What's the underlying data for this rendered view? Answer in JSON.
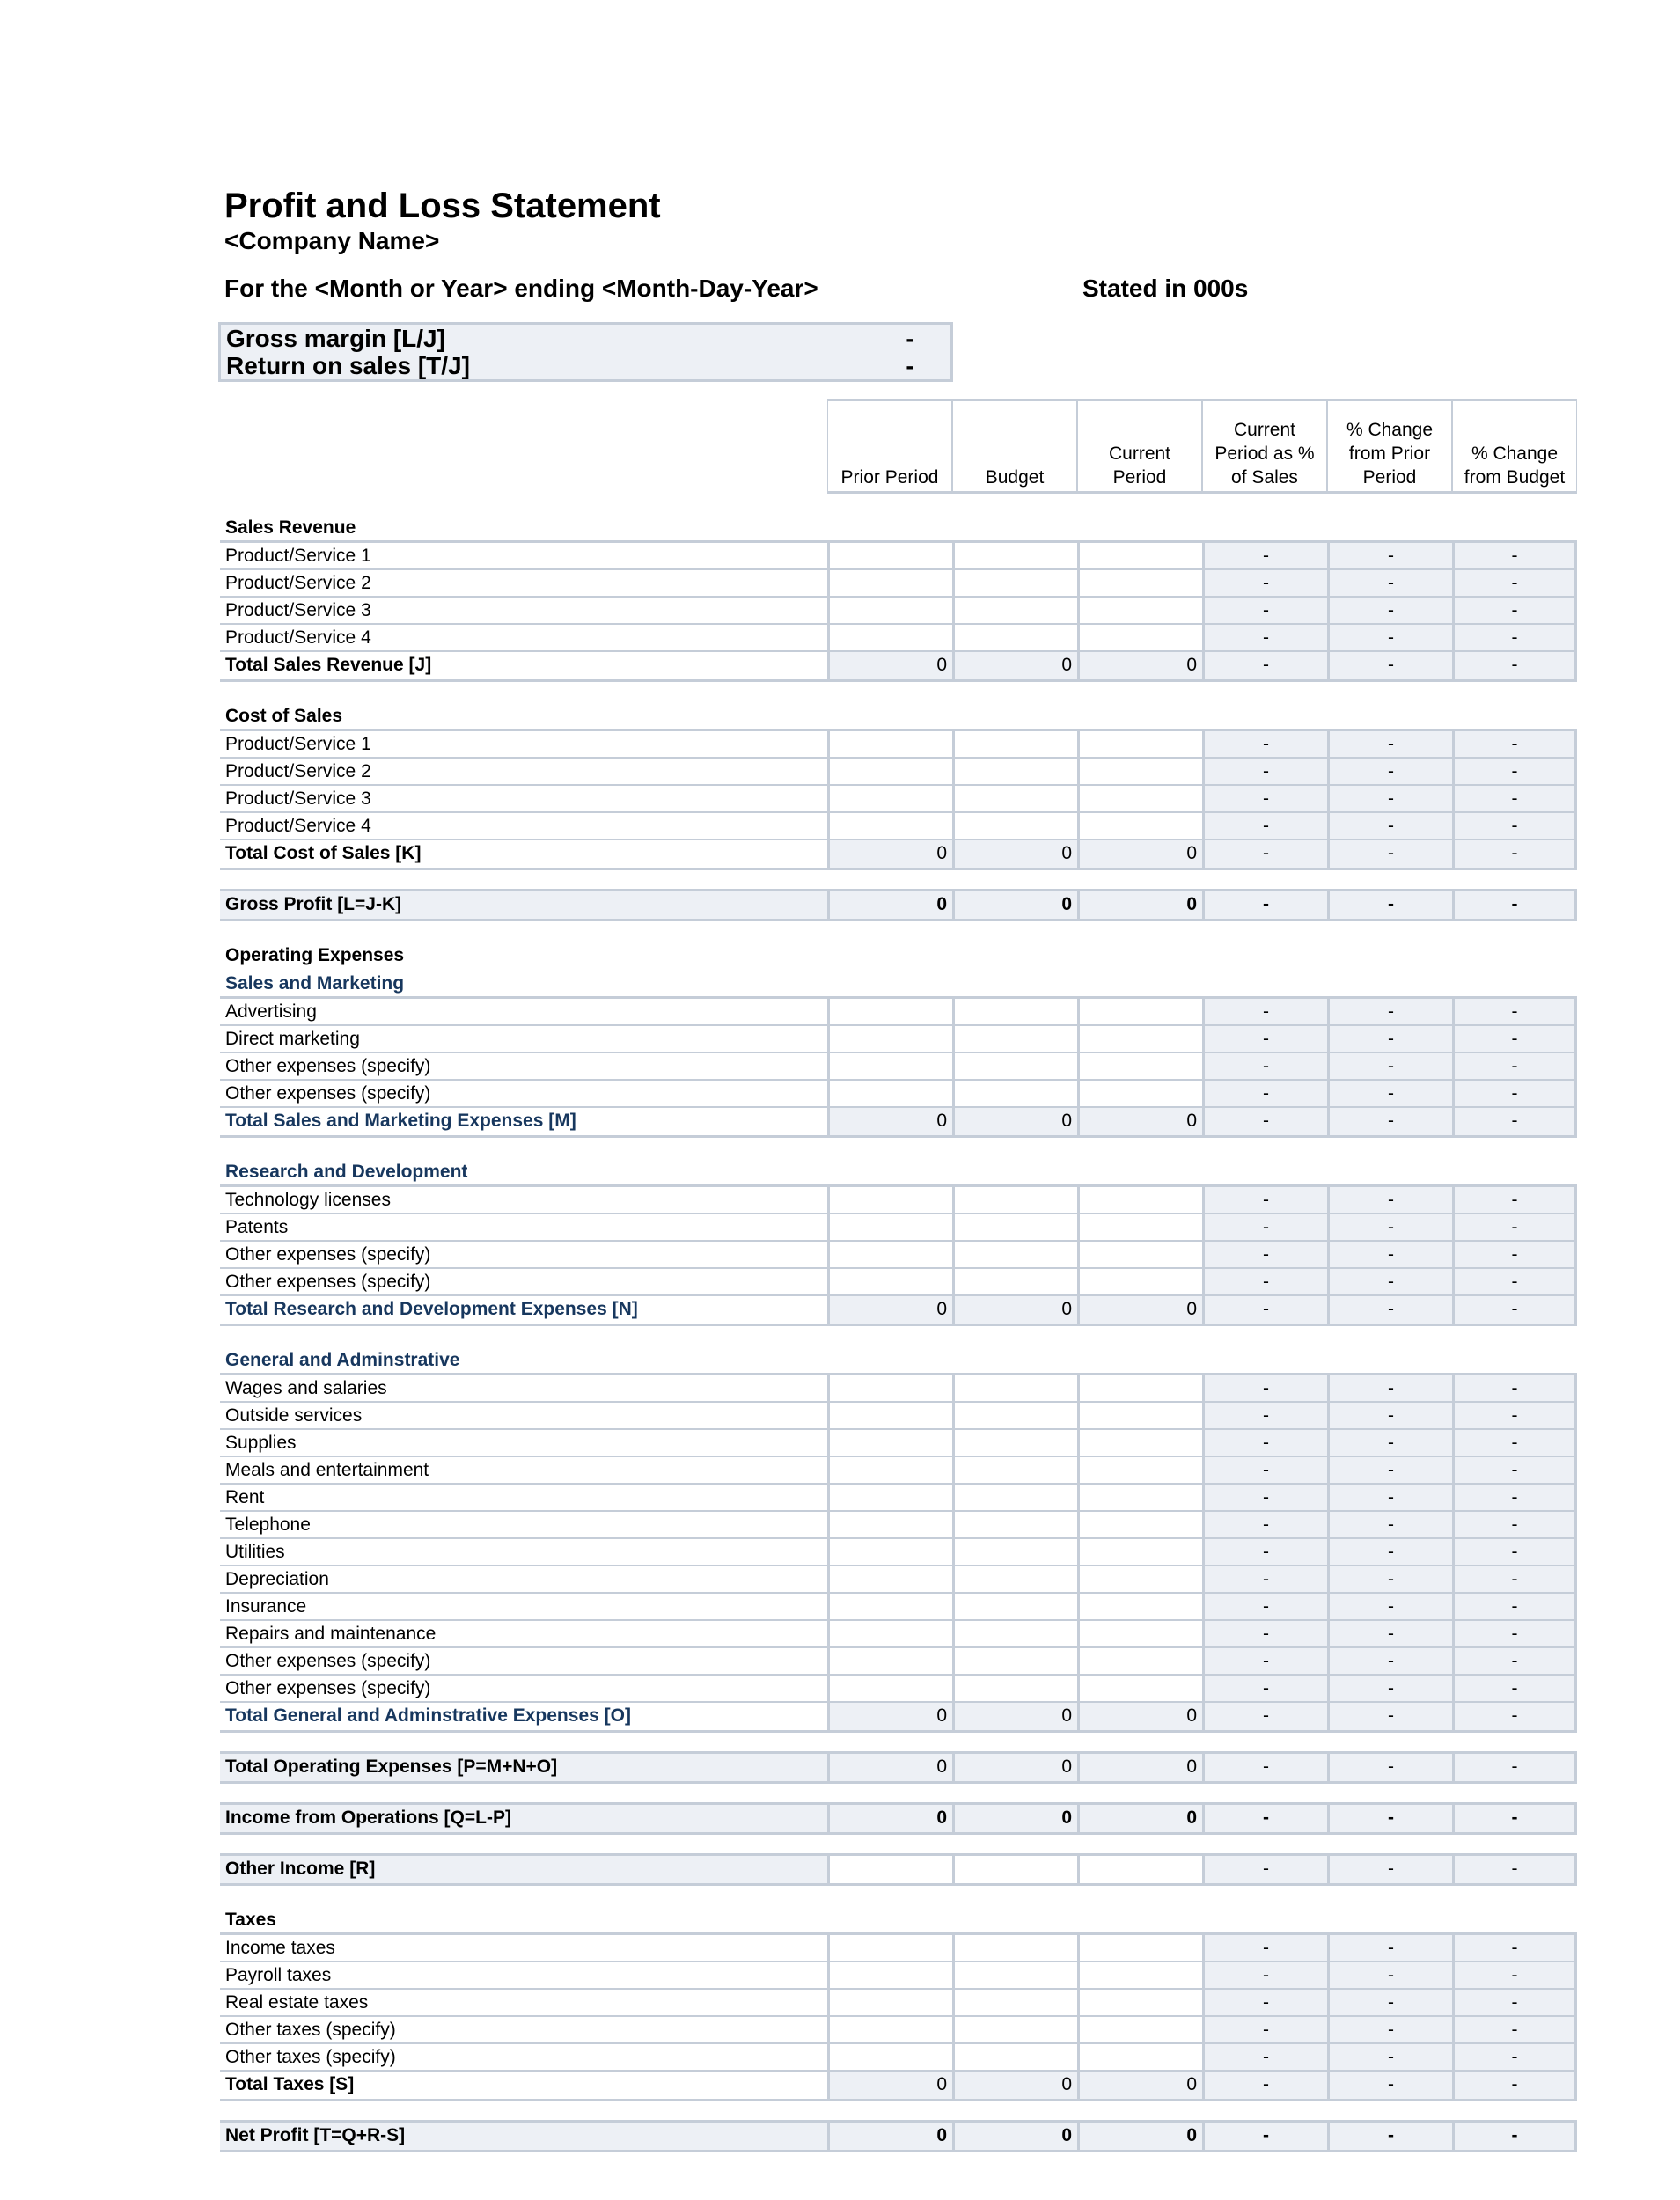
{
  "header": {
    "title": "Profit and Loss Statement",
    "company": "<Company Name>",
    "period": "For the <Month or Year> ending <Month-Day-Year>",
    "stated": "Stated in 000s"
  },
  "summary": [
    {
      "label": "Gross margin  [L/J]",
      "value": "-"
    },
    {
      "label": "Return on sales  [T/J]",
      "value": "-"
    }
  ],
  "columns": [
    "Prior Period",
    "Budget",
    "Current\nPeriod",
    "Current\nPeriod as %\nof Sales",
    "% Change\nfrom Prior\nPeriod",
    "% Change\nfrom Budget"
  ],
  "colors": {
    "heading_blue": "#17375e",
    "shade": "#edf0f5",
    "border": "#c5cdd8"
  },
  "blocks": [
    {
      "heading": "Sales Revenue",
      "rows": [
        {
          "label": "Product/Service 1",
          "type": "input"
        },
        {
          "label": "Product/Service 2",
          "type": "input"
        },
        {
          "label": "Product/Service 3",
          "type": "input"
        },
        {
          "label": "Product/Service 4",
          "type": "input"
        },
        {
          "label": "Total Sales Revenue  [J]",
          "type": "total",
          "values": [
            "0",
            "0",
            "0"
          ]
        }
      ]
    },
    {
      "heading": "Cost of Sales",
      "rows": [
        {
          "label": "Product/Service 1",
          "type": "input"
        },
        {
          "label": "Product/Service 2",
          "type": "input"
        },
        {
          "label": "Product/Service 3",
          "type": "input"
        },
        {
          "label": "Product/Service 4",
          "type": "input"
        },
        {
          "label": "Total Cost of Sales  [K]",
          "type": "total",
          "values": [
            "0",
            "0",
            "0"
          ]
        }
      ]
    },
    {
      "rows": [
        {
          "label": "Gross Profit  [L=J-K]",
          "type": "standalone",
          "strong": true,
          "values": [
            "0",
            "0",
            "0"
          ]
        }
      ]
    },
    {
      "heading": "Operating Expenses",
      "subheading": "Sales and Marketing",
      "rows": [
        {
          "label": "Advertising",
          "type": "input"
        },
        {
          "label": "Direct marketing",
          "type": "input"
        },
        {
          "label": "Other expenses (specify)",
          "type": "input"
        },
        {
          "label": "Other expenses (specify)",
          "type": "input"
        },
        {
          "label": "Total Sales and Marketing Expenses  [M]",
          "type": "total",
          "blue": true,
          "values": [
            "0",
            "0",
            "0"
          ]
        }
      ]
    },
    {
      "subheading": "Research and Development",
      "rows": [
        {
          "label": "Technology licenses",
          "type": "input"
        },
        {
          "label": "Patents",
          "type": "input"
        },
        {
          "label": "Other expenses (specify)",
          "type": "input"
        },
        {
          "label": "Other expenses (specify)",
          "type": "input"
        },
        {
          "label": "Total Research and Development Expenses  [N]",
          "type": "total",
          "blue": true,
          "values": [
            "0",
            "0",
            "0"
          ]
        }
      ]
    },
    {
      "subheading": "General and Adminstrative",
      "rows": [
        {
          "label": "Wages and salaries",
          "type": "input"
        },
        {
          "label": "Outside services",
          "type": "input"
        },
        {
          "label": "Supplies",
          "type": "input"
        },
        {
          "label": "Meals and entertainment",
          "type": "input"
        },
        {
          "label": "Rent",
          "type": "input"
        },
        {
          "label": "Telephone",
          "type": "input"
        },
        {
          "label": "Utilities",
          "type": "input"
        },
        {
          "label": "Depreciation",
          "type": "input"
        },
        {
          "label": "Insurance",
          "type": "input"
        },
        {
          "label": "Repairs and maintenance",
          "type": "input"
        },
        {
          "label": "Other expenses (specify)",
          "type": "input"
        },
        {
          "label": "Other expenses (specify)",
          "type": "input"
        },
        {
          "label": "Total General and Adminstrative Expenses  [O]",
          "type": "total",
          "blue": true,
          "values": [
            "0",
            "0",
            "0"
          ]
        }
      ]
    },
    {
      "rows": [
        {
          "label": "Total Operating Expenses  [P=M+N+O]",
          "type": "standalone",
          "values": [
            "0",
            "0",
            "0"
          ]
        }
      ]
    },
    {
      "rows": [
        {
          "label": "Income from Operations  [Q=L-P]",
          "type": "standalone",
          "strong": true,
          "values": [
            "0",
            "0",
            "0"
          ]
        }
      ]
    },
    {
      "rows": [
        {
          "label": "Other Income  [R]",
          "type": "standalone",
          "input": true
        }
      ]
    },
    {
      "heading": "Taxes",
      "rows": [
        {
          "label": "Income taxes",
          "type": "input"
        },
        {
          "label": "Payroll taxes",
          "type": "input"
        },
        {
          "label": "Real estate taxes",
          "type": "input"
        },
        {
          "label": "Other taxes (specify)",
          "type": "input"
        },
        {
          "label": "Other taxes (specify)",
          "type": "input"
        },
        {
          "label": "Total Taxes  [S]",
          "type": "total",
          "values": [
            "0",
            "0",
            "0"
          ]
        }
      ]
    },
    {
      "rows": [
        {
          "label": "Net Profit  [T=Q+R-S]",
          "type": "standalone",
          "strong": true,
          "values": [
            "0",
            "0",
            "0"
          ]
        }
      ]
    }
  ],
  "pct_placeholder": "-"
}
